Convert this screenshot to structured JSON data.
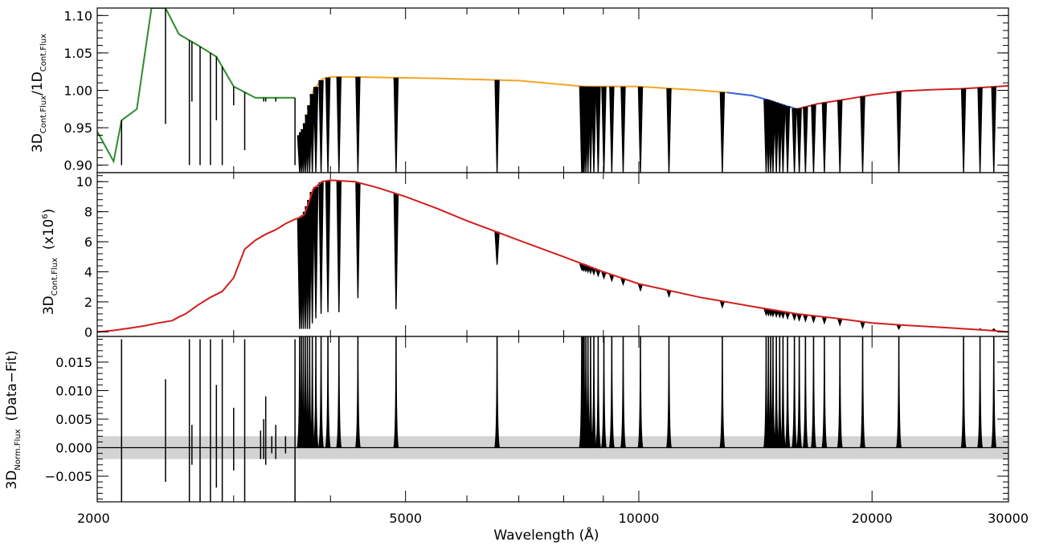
{
  "colors": {
    "background": "#ffffff",
    "frame": "#000000",
    "spectrum": "#000000",
    "green_fit": "#2e8b2e",
    "orange_fit": "#f5a623",
    "blue_fit": "#3a5fd9",
    "red_fit": "#d0201e",
    "residual_band": "#d3d3d3"
  },
  "chart_data": [
    {
      "type": "line",
      "panel": "top",
      "ylabel": "3D_{Cont.Flux}/1D_{Cont.Flux}",
      "ylabel_main1": "3D",
      "ylabel_sub1": "Cont.Flux",
      "ylabel_main2": "/1D",
      "ylabel_sub2": "Cont.Flux",
      "xscale": "log",
      "xlim": [
        2000,
        30000
      ],
      "ylim": [
        0.89,
        1.11
      ],
      "yticks": [
        "0.90",
        "0.95",
        "1.00",
        "1.05",
        "1.10"
      ],
      "ytick_values": [
        0.9,
        0.95,
        1.0,
        1.05,
        1.1
      ],
      "series": [
        {
          "color": "green_fit",
          "x": [
            2000,
            2100,
            2150,
            2250,
            2350,
            2450,
            2550,
            2700,
            2850,
            3000,
            3200,
            3400,
            3600
          ],
          "y": [
            0.945,
            0.905,
            0.96,
            0.975,
            1.11,
            1.11,
            1.075,
            1.06,
            1.045,
            1.005,
            0.99,
            0.99,
            0.99
          ]
        },
        {
          "color": "orange_fit",
          "x": [
            3650,
            3700,
            3800,
            3900,
            4000,
            4300,
            4800,
            5500,
            7000,
            8500,
            10000,
            12000,
            13000
          ],
          "y": [
            0.94,
            0.95,
            1.0,
            1.015,
            1.018,
            1.018,
            1.017,
            1.016,
            1.013,
            1.005,
            1.005,
            1.0,
            0.997
          ]
        },
        {
          "color": "blue_fit",
          "x": [
            13000,
            14000,
            14700,
            15400,
            16000
          ],
          "y": [
            0.997,
            0.993,
            0.987,
            0.98,
            0.975
          ]
        },
        {
          "color": "red_fit",
          "x": [
            16000,
            17000,
            18000,
            19000,
            20000,
            22000,
            24000,
            26000,
            28000,
            30000
          ],
          "y": [
            0.975,
            0.982,
            0.986,
            0.99,
            0.994,
            0.999,
            1.001,
            1.002,
            1.004,
            1.006
          ]
        }
      ]
    },
    {
      "type": "line",
      "panel": "middle",
      "ylabel": "3D_{Cont.Flux} (x10^6)",
      "ylabel_main": "3D",
      "ylabel_sub": "Cont.Flux",
      "ylabel_unit_prefix": "(x10",
      "ylabel_unit_sup": "6",
      "ylabel_unit_suffix": ")",
      "xscale": "log",
      "xlim": [
        2000,
        30000
      ],
      "ylim": [
        -0.3,
        10.6
      ],
      "yticks": [
        "0",
        "2",
        "4",
        "6",
        "8",
        "10"
      ],
      "ytick_values": [
        0,
        2,
        4,
        6,
        8,
        10
      ],
      "series": [
        {
          "color": "red_fit",
          "x": [
            2000,
            2100,
            2200,
            2300,
            2400,
            2500,
            2550,
            2600,
            2700,
            2800,
            2900,
            3000,
            3100,
            3200,
            3300,
            3400,
            3500,
            3600,
            3650,
            3700,
            3750,
            3800,
            3900,
            4000,
            4300,
            4600,
            5000,
            5500,
            6000,
            7000,
            8000,
            9000,
            10000,
            12000,
            14000,
            16000,
            18000,
            20000,
            22000,
            25000,
            28000,
            30000
          ],
          "y": [
            0.0,
            0.1,
            0.25,
            0.4,
            0.6,
            0.75,
            1.0,
            1.2,
            1.8,
            2.3,
            2.7,
            3.6,
            5.5,
            6.1,
            6.5,
            6.8,
            7.2,
            7.5,
            7.6,
            7.8,
            8.6,
            9.5,
            10.0,
            10.1,
            10.0,
            9.6,
            9.0,
            8.2,
            7.4,
            6.1,
            5.0,
            4.0,
            3.2,
            2.3,
            1.7,
            1.2,
            0.9,
            0.6,
            0.45,
            0.28,
            0.12,
            0.0
          ]
        }
      ]
    },
    {
      "type": "line",
      "panel": "bottom",
      "ylabel": "3D_{Norm.Flux} (Data-Fit)",
      "ylabel_main": "3D",
      "ylabel_sub": "Norm.Flux",
      "ylabel_suffix": "(Data−Fit)",
      "xlabel": "Wavelength (Å)",
      "xscale": "log",
      "xlim": [
        2000,
        30000
      ],
      "xticks": [
        "2000",
        "5000",
        "10000",
        "20000",
        "30000"
      ],
      "xtick_values": [
        2000,
        5000,
        10000,
        20000,
        30000
      ],
      "ylim": [
        -0.0095,
        0.0195
      ],
      "yticks": [
        "−0.005",
        "0.000",
        "0.005",
        "0.010",
        "0.015"
      ],
      "ytick_values": [
        -0.005,
        0.0,
        0.005,
        0.01,
        0.015
      ],
      "band": {
        "ymin": -0.002,
        "ymax": 0.002,
        "color": "residual_band"
      },
      "baseline": 0.0
    }
  ],
  "lines": {
    "bb": [
      3650,
      3670,
      3690,
      3712,
      3735,
      3760,
      3790,
      3830,
      3890,
      3970,
      4102,
      4340,
      4861,
      6563,
      8440,
      8470,
      8500,
      8545,
      8598,
      8665,
      8750,
      8863,
      9015,
      9229,
      9546,
      10049,
      10938,
      12818,
      14600,
      14700,
      14800,
      14900,
      15050,
      15200,
      15350,
      15560,
      15880,
      16110,
      16410,
      16810,
      17360,
      18180,
      19450,
      21660,
      26252,
      27570,
      28720
    ],
    "uv": [
      2150,
      2450,
      2630,
      2650,
      2715,
      2800,
      2850,
      2900,
      3000,
      3100,
      3250,
      3280,
      3300,
      3360,
      3400,
      3500,
      3600
    ]
  }
}
